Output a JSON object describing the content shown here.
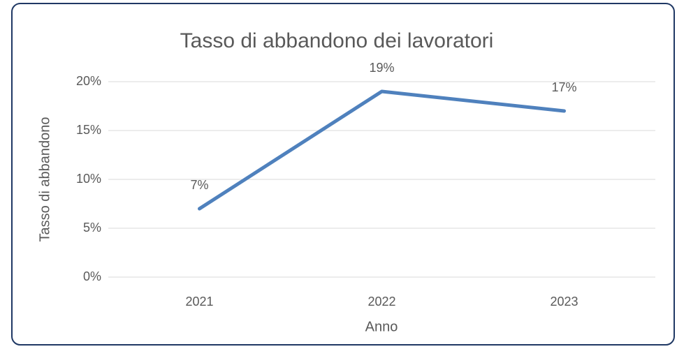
{
  "chart_data": {
    "type": "line",
    "title": "Tasso di abbandono dei lavoratori",
    "x_label": "Anno",
    "y_label": "Tasso di abbandono",
    "categories": [
      "2021",
      "2022",
      "2023"
    ],
    "series": [
      {
        "name": "Tasso di abbandono",
        "color": "#4f81bd",
        "values": [
          7,
          19,
          17
        ],
        "value_labels": [
          "7%",
          "19%",
          "17%"
        ]
      }
    ],
    "ylim": [
      0,
      20
    ],
    "yticks": [
      {
        "value": 0,
        "label": "0%"
      },
      {
        "value": 5,
        "label": "5%"
      },
      {
        "value": 10,
        "label": "10%"
      },
      {
        "value": 15,
        "label": "15%"
      },
      {
        "value": 20,
        "label": "20%"
      }
    ],
    "grid": true
  }
}
